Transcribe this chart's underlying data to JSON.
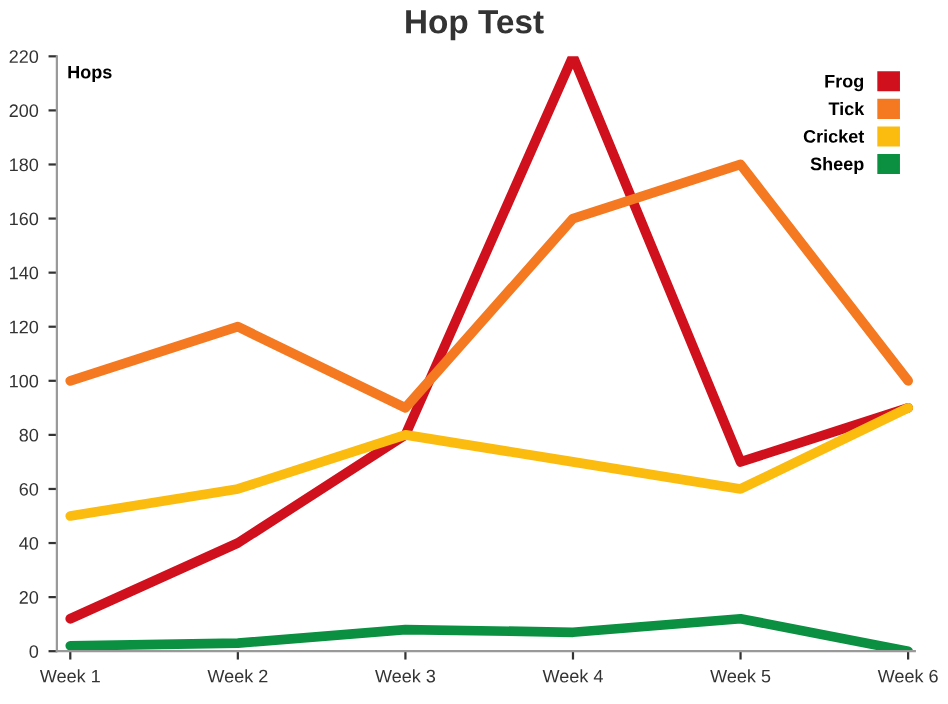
{
  "chart_data": {
    "type": "line",
    "title": "Hop Test",
    "ylabel": "Hops",
    "categories": [
      "Week 1",
      "Week 2",
      "Week 3",
      "Week 4",
      "Week 5",
      "Week 6"
    ],
    "series": [
      {
        "name": "Frog",
        "color": "#d0101c",
        "values": [
          12,
          40,
          80,
          220,
          70,
          90
        ]
      },
      {
        "name": "Tick",
        "color": "#f47920",
        "values": [
          100,
          120,
          90,
          160,
          180,
          100
        ]
      },
      {
        "name": "Cricket",
        "color": "#fbbc0f",
        "values": [
          50,
          60,
          80,
          70,
          60,
          90
        ]
      },
      {
        "name": "Sheep",
        "color": "#0a9040",
        "values": [
          2,
          3,
          8,
          7,
          12,
          0
        ]
      }
    ],
    "ylim": [
      0,
      220
    ],
    "yticks": [
      0,
      20,
      40,
      60,
      80,
      100,
      120,
      140,
      160,
      180,
      200,
      220
    ],
    "legend": "top right",
    "grid": false,
    "marker": "none",
    "line_style": "solid"
  }
}
